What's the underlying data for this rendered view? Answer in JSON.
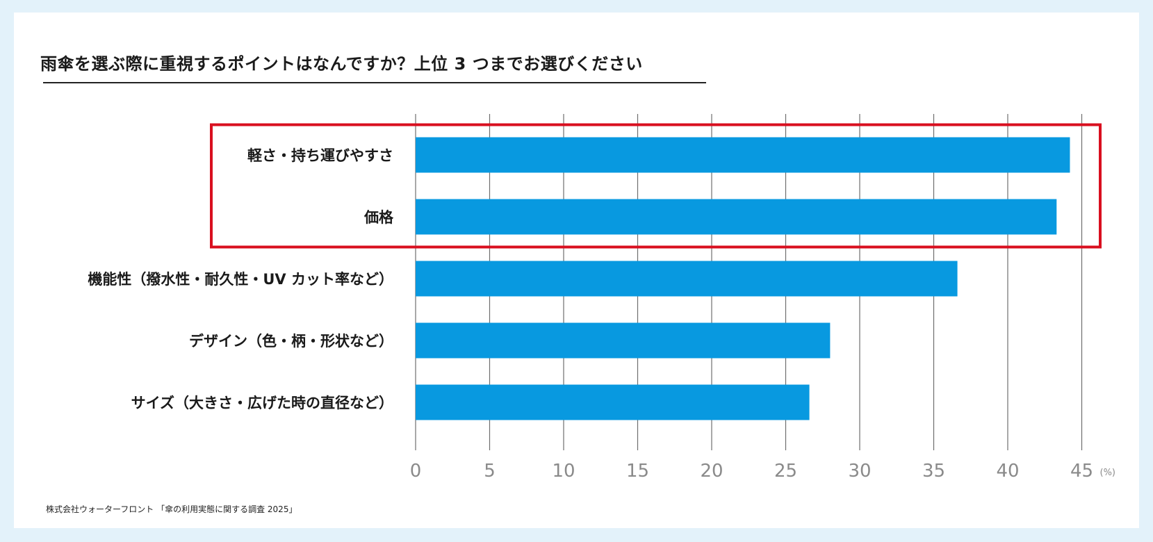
{
  "title": "雨傘を選ぶ際に重視するポイントはなんですか？上位 3 つまでお選びください",
  "source": "株式会社ウォーターフロント 「傘の利用実態に関する調査 2025」",
  "chart_data": {
    "type": "bar",
    "orientation": "horizontal",
    "categories": [
      "軽さ・持ち運びやすさ",
      "価格",
      "機能性（撥水性・耐久性・UV カット率など）",
      "デザイン（色・柄・形状など）",
      "サイズ（大きさ・広げた時の直径など）"
    ],
    "values": [
      44.2,
      43.3,
      36.6,
      28.0,
      26.6
    ],
    "xlim": [
      0,
      45
    ],
    "ticks": [
      0,
      5,
      10,
      15,
      20,
      25,
      30,
      35,
      40,
      45
    ],
    "tick_labels": [
      "0",
      "5",
      "10",
      "15",
      "20",
      "25",
      "30",
      "35",
      "40",
      "45"
    ],
    "unit": "(%)",
    "grid": true,
    "highlight_top": 2,
    "bar_color": "#0899e0",
    "highlight_color": "#d90f1f"
  }
}
